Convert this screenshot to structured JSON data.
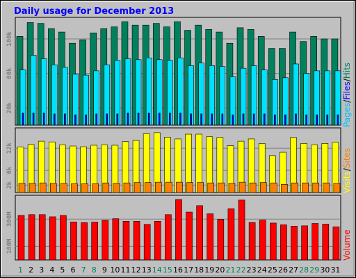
{
  "title": "Daily usage for December 2013",
  "colors": {
    "background": "#c0c0c0",
    "border": "#000000",
    "title": "#0000ff",
    "hits": "#00805c",
    "files": "#00e0ff",
    "pages": "#00c0ff",
    "pages_deep": "#0000ff",
    "visits": "#ffff00",
    "sites": "#ff8000",
    "volume": "#ff0000",
    "weekend_label": "#00805c",
    "weekday_label": "#000000"
  },
  "chart_data": [
    {
      "type": "bar",
      "title": "Daily usage for December 2013",
      "categories": [
        "1",
        "2",
        "3",
        "4",
        "5",
        "6",
        "7",
        "8",
        "9",
        "10",
        "11",
        "12",
        "13",
        "14",
        "15",
        "16",
        "17",
        "18",
        "19",
        "20",
        "21",
        "22",
        "23",
        "24",
        "25",
        "26",
        "27",
        "28",
        "29",
        "30",
        "31"
      ],
      "weekend_days": [
        "1",
        "7",
        "8",
        "14",
        "15",
        "21",
        "22",
        "28",
        "29"
      ],
      "series": [
        {
          "name": "Hits",
          "color": "#00805c",
          "values": [
            103000,
            119000,
            118000,
            112000,
            108000,
            95000,
            99000,
            107000,
            112000,
            114000,
            120000,
            116000,
            116000,
            118000,
            114000,
            120000,
            110000,
            116000,
            111000,
            108000,
            95000,
            113000,
            111000,
            103000,
            89000,
            89000,
            108000,
            97000,
            103000,
            100000,
            100000
          ]
        },
        {
          "name": "Files",
          "color": "#00e0ff",
          "values": [
            64000,
            81000,
            77000,
            70000,
            67000,
            59000,
            58000,
            63000,
            70000,
            75000,
            77000,
            76000,
            78000,
            76000,
            75000,
            78000,
            69000,
            72000,
            69000,
            68000,
            56000,
            66000,
            69000,
            64000,
            53000,
            55000,
            71000,
            60000,
            63000,
            63000,
            63000
          ]
        },
        {
          "name": "Pages",
          "color": "#0000ff",
          "values": [
            14000,
            14000,
            14000,
            13000,
            13000,
            12000,
            12000,
            13000,
            13000,
            13000,
            14000,
            14000,
            14000,
            14000,
            14000,
            14000,
            13000,
            13000,
            13000,
            13000,
            12000,
            13000,
            13000,
            13000,
            12000,
            12000,
            13000,
            12000,
            12000,
            12000,
            12000
          ]
        }
      ],
      "ylabel": "Pages / Files / Hits",
      "yticks": [
        "20k",
        "60k",
        "100k"
      ],
      "ylim": [
        0,
        125000
      ],
      "grid": true
    },
    {
      "type": "bar",
      "categories": [
        "1",
        "2",
        "3",
        "4",
        "5",
        "6",
        "7",
        "8",
        "9",
        "10",
        "11",
        "12",
        "13",
        "14",
        "15",
        "16",
        "17",
        "18",
        "19",
        "20",
        "21",
        "22",
        "23",
        "24",
        "25",
        "26",
        "27",
        "28",
        "29",
        "30",
        "31"
      ],
      "series": [
        {
          "name": "Visits",
          "color": "#ffff00",
          "values": [
            12300,
            13000,
            13900,
            13700,
            12900,
            12600,
            12400,
            12800,
            12900,
            12800,
            13800,
            14100,
            15900,
            16200,
            15000,
            14500,
            15800,
            15800,
            15100,
            14900,
            12700,
            13900,
            14500,
            13300,
            10000,
            10900,
            14900,
            13300,
            12900,
            13300,
            13600
          ]
        },
        {
          "name": "Sites",
          "color": "#ff8000",
          "values": [
            2500,
            2500,
            2600,
            2500,
            2500,
            2400,
            2400,
            2400,
            2600,
            2500,
            2600,
            2700,
            2700,
            2800,
            2800,
            2800,
            2700,
            2700,
            2600,
            2600,
            2500,
            2800,
            2600,
            2700,
            2600,
            2200,
            2600,
            2600,
            2600,
            2600,
            2500
          ]
        }
      ],
      "ylabel": "Visits / Sites",
      "yticks": [
        "2k",
        "6k",
        "12k"
      ],
      "ylim": [
        0,
        17500
      ],
      "grid": true
    },
    {
      "type": "bar",
      "categories": [
        "1",
        "2",
        "3",
        "4",
        "5",
        "6",
        "7",
        "8",
        "9",
        "10",
        "11",
        "12",
        "13",
        "14",
        "15",
        "16",
        "17",
        "18",
        "19",
        "20",
        "21",
        "22",
        "23",
        "24",
        "25",
        "26",
        "27",
        "28",
        "29",
        "30",
        "31"
      ],
      "series": [
        {
          "name": "Volume",
          "color": "#ff0000",
          "values": [
            327000,
            333000,
            333000,
            317000,
            327000,
            279000,
            274000,
            278000,
            291000,
            303000,
            284000,
            284000,
            261000,
            284000,
            333000,
            444000,
            352000,
            399000,
            339000,
            299000,
            376000,
            440000,
            275000,
            293000,
            271000,
            258000,
            248000,
            251000,
            268000,
            263000,
            243000
          ]
        }
      ],
      "ylabel": "Volume",
      "yticks": [
        "100M",
        "300M"
      ],
      "ylim": [
        0,
        475000
      ],
      "grid": true
    }
  ]
}
